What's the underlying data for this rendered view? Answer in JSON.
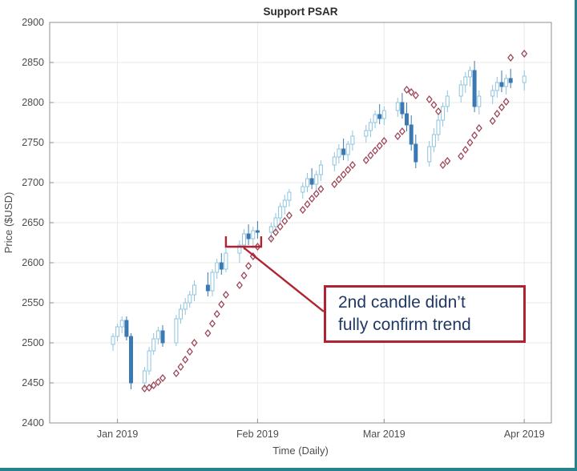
{
  "page": {
    "border_color": "#27818f"
  },
  "chart_data": {
    "type": "candlestick",
    "title": "Support PSAR",
    "xlabel": "Time (Daily)",
    "ylabel": "Price ($USD)",
    "ylim": [
      2400,
      2900
    ],
    "x_domain_days": [
      0,
      111
    ],
    "grid": true,
    "y_ticks": [
      2400,
      2450,
      2500,
      2550,
      2600,
      2650,
      2700,
      2750,
      2800,
      2850,
      2900
    ],
    "x_ticks": [
      {
        "d": 15,
        "label": "Jan 2019"
      },
      {
        "d": 46,
        "label": "Feb 2019"
      },
      {
        "d": 74,
        "label": "Mar 2019"
      },
      {
        "d": 105,
        "label": "Apr 2019"
      }
    ],
    "colors": {
      "candle_up": "#8ec4de",
      "candle_down": "#3b79b3",
      "psar": "#9d4456"
    },
    "candles_format": [
      "day_offset",
      "open",
      "high",
      "low",
      "close"
    ],
    "candles": [
      [
        14,
        2498,
        2512,
        2490,
        2508
      ],
      [
        15,
        2508,
        2524,
        2502,
        2520
      ],
      [
        16,
        2520,
        2533,
        2512,
        2528
      ],
      [
        17,
        2528,
        2533,
        2503,
        2508
      ],
      [
        18,
        2508,
        2512,
        2442,
        2450
      ],
      [
        21,
        2450,
        2470,
        2443,
        2465
      ],
      [
        22,
        2465,
        2495,
        2460,
        2490
      ],
      [
        23,
        2490,
        2512,
        2485,
        2505
      ],
      [
        24,
        2505,
        2520,
        2498,
        2515
      ],
      [
        25,
        2515,
        2522,
        2495,
        2500
      ],
      [
        28,
        2500,
        2535,
        2496,
        2530
      ],
      [
        29,
        2530,
        2548,
        2524,
        2542
      ],
      [
        30,
        2542,
        2556,
        2535,
        2550
      ],
      [
        31,
        2550,
        2565,
        2544,
        2560
      ],
      [
        32,
        2560,
        2578,
        2552,
        2572
      ],
      [
        35,
        2572,
        2588,
        2558,
        2565
      ],
      [
        36,
        2565,
        2592,
        2558,
        2588
      ],
      [
        37,
        2588,
        2605,
        2580,
        2600
      ],
      [
        38,
        2600,
        2612,
        2585,
        2592
      ],
      [
        39,
        2592,
        2618,
        2588,
        2612
      ],
      [
        42,
        2612,
        2628,
        2600,
        2622
      ],
      [
        43,
        2622,
        2642,
        2616,
        2636
      ],
      [
        44,
        2636,
        2648,
        2622,
        2630
      ],
      [
        45,
        2630,
        2645,
        2618,
        2640
      ],
      [
        46,
        2640,
        2652,
        2630,
        2638
      ],
      [
        49,
        2638,
        2650,
        2628,
        2645
      ],
      [
        50,
        2645,
        2662,
        2638,
        2656
      ],
      [
        51,
        2656,
        2675,
        2650,
        2670
      ],
      [
        52,
        2670,
        2685,
        2660,
        2678
      ],
      [
        53,
        2678,
        2692,
        2670,
        2688
      ],
      [
        56,
        2688,
        2700,
        2680,
        2695
      ],
      [
        57,
        2695,
        2712,
        2688,
        2705
      ],
      [
        58,
        2705,
        2718,
        2692,
        2698
      ],
      [
        59,
        2698,
        2715,
        2690,
        2710
      ],
      [
        60,
        2710,
        2728,
        2702,
        2722
      ],
      [
        63,
        2722,
        2738,
        2714,
        2732
      ],
      [
        64,
        2732,
        2748,
        2724,
        2742
      ],
      [
        65,
        2742,
        2755,
        2728,
        2735
      ],
      [
        66,
        2735,
        2752,
        2727,
        2748
      ],
      [
        67,
        2748,
        2765,
        2740,
        2758
      ],
      [
        70,
        2758,
        2772,
        2750,
        2765
      ],
      [
        71,
        2765,
        2780,
        2757,
        2775
      ],
      [
        72,
        2775,
        2790,
        2768,
        2785
      ],
      [
        73,
        2785,
        2798,
        2773,
        2780
      ],
      [
        74,
        2780,
        2795,
        2772,
        2790
      ],
      [
        77,
        2790,
        2806,
        2782,
        2800
      ],
      [
        78,
        2800,
        2812,
        2780,
        2786
      ],
      [
        79,
        2786,
        2800,
        2764,
        2772
      ],
      [
        80,
        2772,
        2784,
        2740,
        2748
      ],
      [
        81,
        2748,
        2760,
        2718,
        2726
      ],
      [
        84,
        2726,
        2752,
        2720,
        2745
      ],
      [
        85,
        2745,
        2768,
        2738,
        2760
      ],
      [
        86,
        2760,
        2785,
        2752,
        2778
      ],
      [
        87,
        2778,
        2800,
        2770,
        2795
      ],
      [
        88,
        2795,
        2815,
        2788,
        2808
      ],
      [
        91,
        2808,
        2828,
        2800,
        2822
      ],
      [
        92,
        2822,
        2838,
        2812,
        2832
      ],
      [
        93,
        2832,
        2845,
        2820,
        2840
      ],
      [
        94,
        2840,
        2852,
        2788,
        2795
      ],
      [
        95,
        2795,
        2815,
        2785,
        2808
      ],
      [
        98,
        2808,
        2822,
        2798,
        2815
      ],
      [
        99,
        2815,
        2832,
        2806,
        2825
      ],
      [
        100,
        2825,
        2840,
        2813,
        2820
      ],
      [
        101,
        2820,
        2835,
        2810,
        2830
      ],
      [
        102,
        2830,
        2842,
        2818,
        2825
      ],
      [
        105,
        2825,
        2840,
        2815,
        2833
      ]
    ],
    "psar_format": [
      "day_offset",
      "value"
    ],
    "psar": [
      [
        21,
        2443
      ],
      [
        22,
        2444
      ],
      [
        23,
        2447
      ],
      [
        24,
        2451
      ],
      [
        25,
        2456
      ],
      [
        28,
        2462
      ],
      [
        29,
        2470
      ],
      [
        30,
        2479
      ],
      [
        31,
        2489
      ],
      [
        32,
        2500
      ],
      [
        35,
        2512
      ],
      [
        36,
        2524
      ],
      [
        37,
        2536
      ],
      [
        38,
        2548
      ],
      [
        39,
        2560
      ],
      [
        42,
        2572
      ],
      [
        43,
        2584
      ],
      [
        44,
        2596
      ],
      [
        45,
        2608
      ],
      [
        46,
        2620
      ],
      [
        49,
        2630
      ],
      [
        50,
        2638
      ],
      [
        51,
        2645
      ],
      [
        52,
        2652
      ],
      [
        53,
        2659
      ],
      [
        56,
        2666
      ],
      [
        57,
        2673
      ],
      [
        58,
        2680
      ],
      [
        59,
        2686
      ],
      [
        60,
        2692
      ],
      [
        63,
        2698
      ],
      [
        64,
        2704
      ],
      [
        65,
        2710
      ],
      [
        66,
        2716
      ],
      [
        67,
        2722
      ],
      [
        70,
        2728
      ],
      [
        71,
        2734
      ],
      [
        72,
        2740
      ],
      [
        73,
        2746
      ],
      [
        74,
        2752
      ],
      [
        77,
        2758
      ],
      [
        78,
        2764
      ],
      [
        79,
        2816
      ],
      [
        80,
        2813
      ],
      [
        81,
        2809
      ],
      [
        84,
        2804
      ],
      [
        85,
        2797
      ],
      [
        86,
        2789
      ],
      [
        87,
        2722
      ],
      [
        88,
        2727
      ],
      [
        91,
        2733
      ],
      [
        92,
        2741
      ],
      [
        93,
        2750
      ],
      [
        94,
        2759
      ],
      [
        95,
        2768
      ],
      [
        98,
        2777
      ],
      [
        99,
        2786
      ],
      [
        100,
        2794
      ],
      [
        101,
        2801
      ],
      [
        102,
        2856
      ],
      [
        105,
        2861
      ]
    ],
    "annotation": {
      "lines": [
        "2nd candle didn’t",
        "fully confirm trend"
      ],
      "color": "#b02330",
      "text_color": "#203864",
      "bracket": {
        "d1": 39.0,
        "d2": 46.8,
        "price": 2620,
        "tick": 13
      }
    }
  }
}
